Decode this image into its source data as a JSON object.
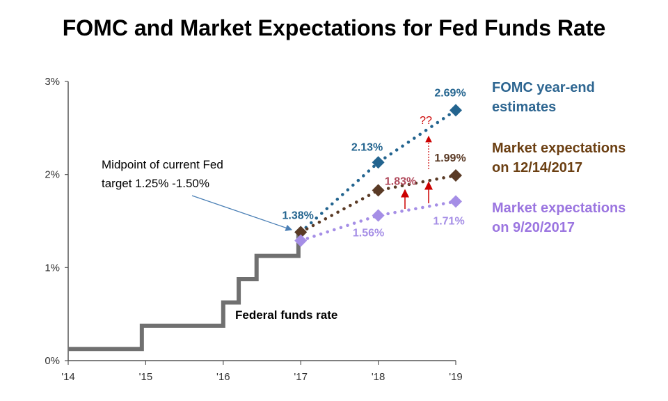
{
  "chart_data": {
    "type": "line",
    "title": "FOMC and Market Expectations for Fed Funds Rate",
    "x_ticks": [
      "'14",
      "'15",
      "'16",
      "'17",
      "'18",
      "'19"
    ],
    "y_ticks": [
      "0%",
      "1%",
      "2%",
      "3%"
    ],
    "ylim": [
      0,
      3
    ],
    "xlim": [
      2014,
      2019
    ],
    "series": [
      {
        "name": "Federal funds rate",
        "color": "#707070",
        "style": "step",
        "points": [
          [
            2014.0,
            0.125
          ],
          [
            2014.9,
            0.125
          ],
          [
            2014.95,
            0.375
          ],
          [
            2015.95,
            0.375
          ],
          [
            2016.0,
            0.625
          ],
          [
            2016.15,
            0.625
          ],
          [
            2016.2,
            0.875
          ],
          [
            2016.38,
            0.875
          ],
          [
            2016.43,
            1.125
          ],
          [
            2016.9,
            1.125
          ],
          [
            2016.97,
            1.375
          ]
        ]
      },
      {
        "name": "FOMC year-end estimates",
        "legend": [
          "FOMC year-end",
          "estimates"
        ],
        "color": "#23648f",
        "style": "dotted",
        "points": [
          [
            2017.0,
            1.38
          ],
          [
            2018.0,
            2.13
          ],
          [
            2019.0,
            2.69
          ]
        ],
        "labels": [
          "1.38%",
          "2.13%",
          "2.69%"
        ]
      },
      {
        "name": "Market expectations on 12/14/2017",
        "legend": [
          "Market expectations",
          "on 12/14/2017"
        ],
        "color": "#5a3a25",
        "style": "dotted",
        "points": [
          [
            2017.0,
            1.38
          ],
          [
            2018.0,
            1.83
          ],
          [
            2019.0,
            1.99
          ]
        ],
        "labels": [
          "",
          "1.83%",
          "1.99%"
        ],
        "label_colors": [
          "",
          "#b0485a",
          "#5a3a25"
        ]
      },
      {
        "name": "Market expectations on 9/20/2017",
        "legend": [
          "Market expectations",
          "on 9/20/2017"
        ],
        "color": "#a58ee6",
        "style": "dotted",
        "points": [
          [
            2017.0,
            1.29
          ],
          [
            2018.0,
            1.56
          ],
          [
            2019.0,
            1.71
          ]
        ],
        "labels": [
          "",
          "1.56%",
          "1.71%"
        ]
      }
    ],
    "annotations": {
      "midpoint_note": [
        "Midpoint of current Fed",
        "target 1.25% -1.50%"
      ],
      "ffr_label": "Federal funds rate",
      "question": "??"
    },
    "legend_colors": {
      "fomc": "#2e6691",
      "dec": "#6b3f12",
      "sep": "#9b75e0"
    },
    "arrow_color": "#cc0000"
  }
}
